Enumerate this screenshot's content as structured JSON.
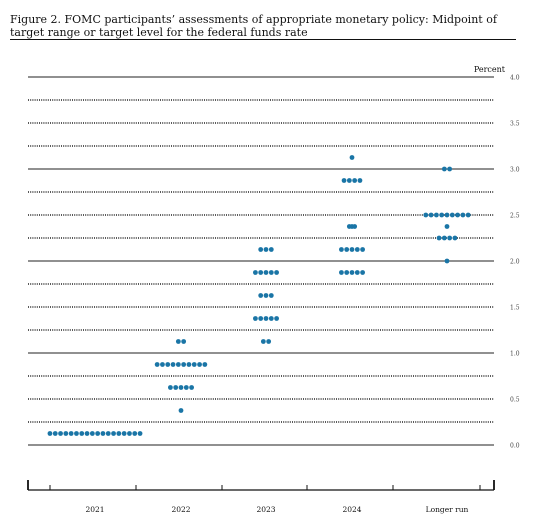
{
  "figure": {
    "title": "Figure 2.  FOMC participants’ assessments of appropriate monetary policy:  Midpoint of target range or target level for the federal funds rate"
  },
  "chart_data": {
    "type": "scatter",
    "title": "Figure 2.  FOMC participants’ assessments of appropriate monetary policy:  Midpoint of target range or target level for the federal funds rate",
    "ylabel": "Percent",
    "ylim": [
      0.0,
      4.0
    ],
    "yticks": [
      {
        "value": 4.0,
        "label": "4.0"
      },
      {
        "value": 3.5,
        "label": "3.5"
      },
      {
        "value": 3.0,
        "label": "3.0"
      },
      {
        "value": 2.5,
        "label": "2.5"
      },
      {
        "value": 2.0,
        "label": "2.0"
      },
      {
        "value": 1.5,
        "label": "1.5"
      },
      {
        "value": 1.0,
        "label": "1.0"
      },
      {
        "value": 0.5,
        "label": "0.5"
      },
      {
        "value": 0.0,
        "label": "0.0"
      }
    ],
    "categories": [
      "2021",
      "2022",
      "2023",
      "2024",
      "Longer run"
    ],
    "grid": true,
    "dot_color": "#1a75a6",
    "series": [
      {
        "category": "2021",
        "points": [
          {
            "y": 0.125,
            "count": 18
          }
        ]
      },
      {
        "category": "2022",
        "points": [
          {
            "y": 0.375,
            "count": 1
          },
          {
            "y": 0.625,
            "count": 5
          },
          {
            "y": 0.875,
            "count": 10
          },
          {
            "y": 1.125,
            "count": 2
          }
        ]
      },
      {
        "category": "2023",
        "points": [
          {
            "y": 1.125,
            "count": 2
          },
          {
            "y": 1.375,
            "count": 5
          },
          {
            "y": 1.625,
            "count": 3
          },
          {
            "y": 1.875,
            "count": 5
          },
          {
            "y": 2.125,
            "count": 3
          }
        ]
      },
      {
        "category": "2024",
        "points": [
          {
            "y": 1.875,
            "count": 5
          },
          {
            "y": 2.125,
            "count": 5
          },
          {
            "y": 2.375,
            "count": 1
          },
          {
            "y": 2.375,
            "count": 2
          },
          {
            "y": 2.875,
            "count": 4
          },
          {
            "y": 3.125,
            "count": 1
          }
        ]
      },
      {
        "category": "Longer run",
        "points": [
          {
            "y": 2.0,
            "count": 1
          },
          {
            "y": 2.25,
            "count": 4
          },
          {
            "y": 2.375,
            "count": 1
          },
          {
            "y": 2.5,
            "count": 9
          },
          {
            "y": 3.0,
            "count": 2
          }
        ]
      }
    ]
  }
}
